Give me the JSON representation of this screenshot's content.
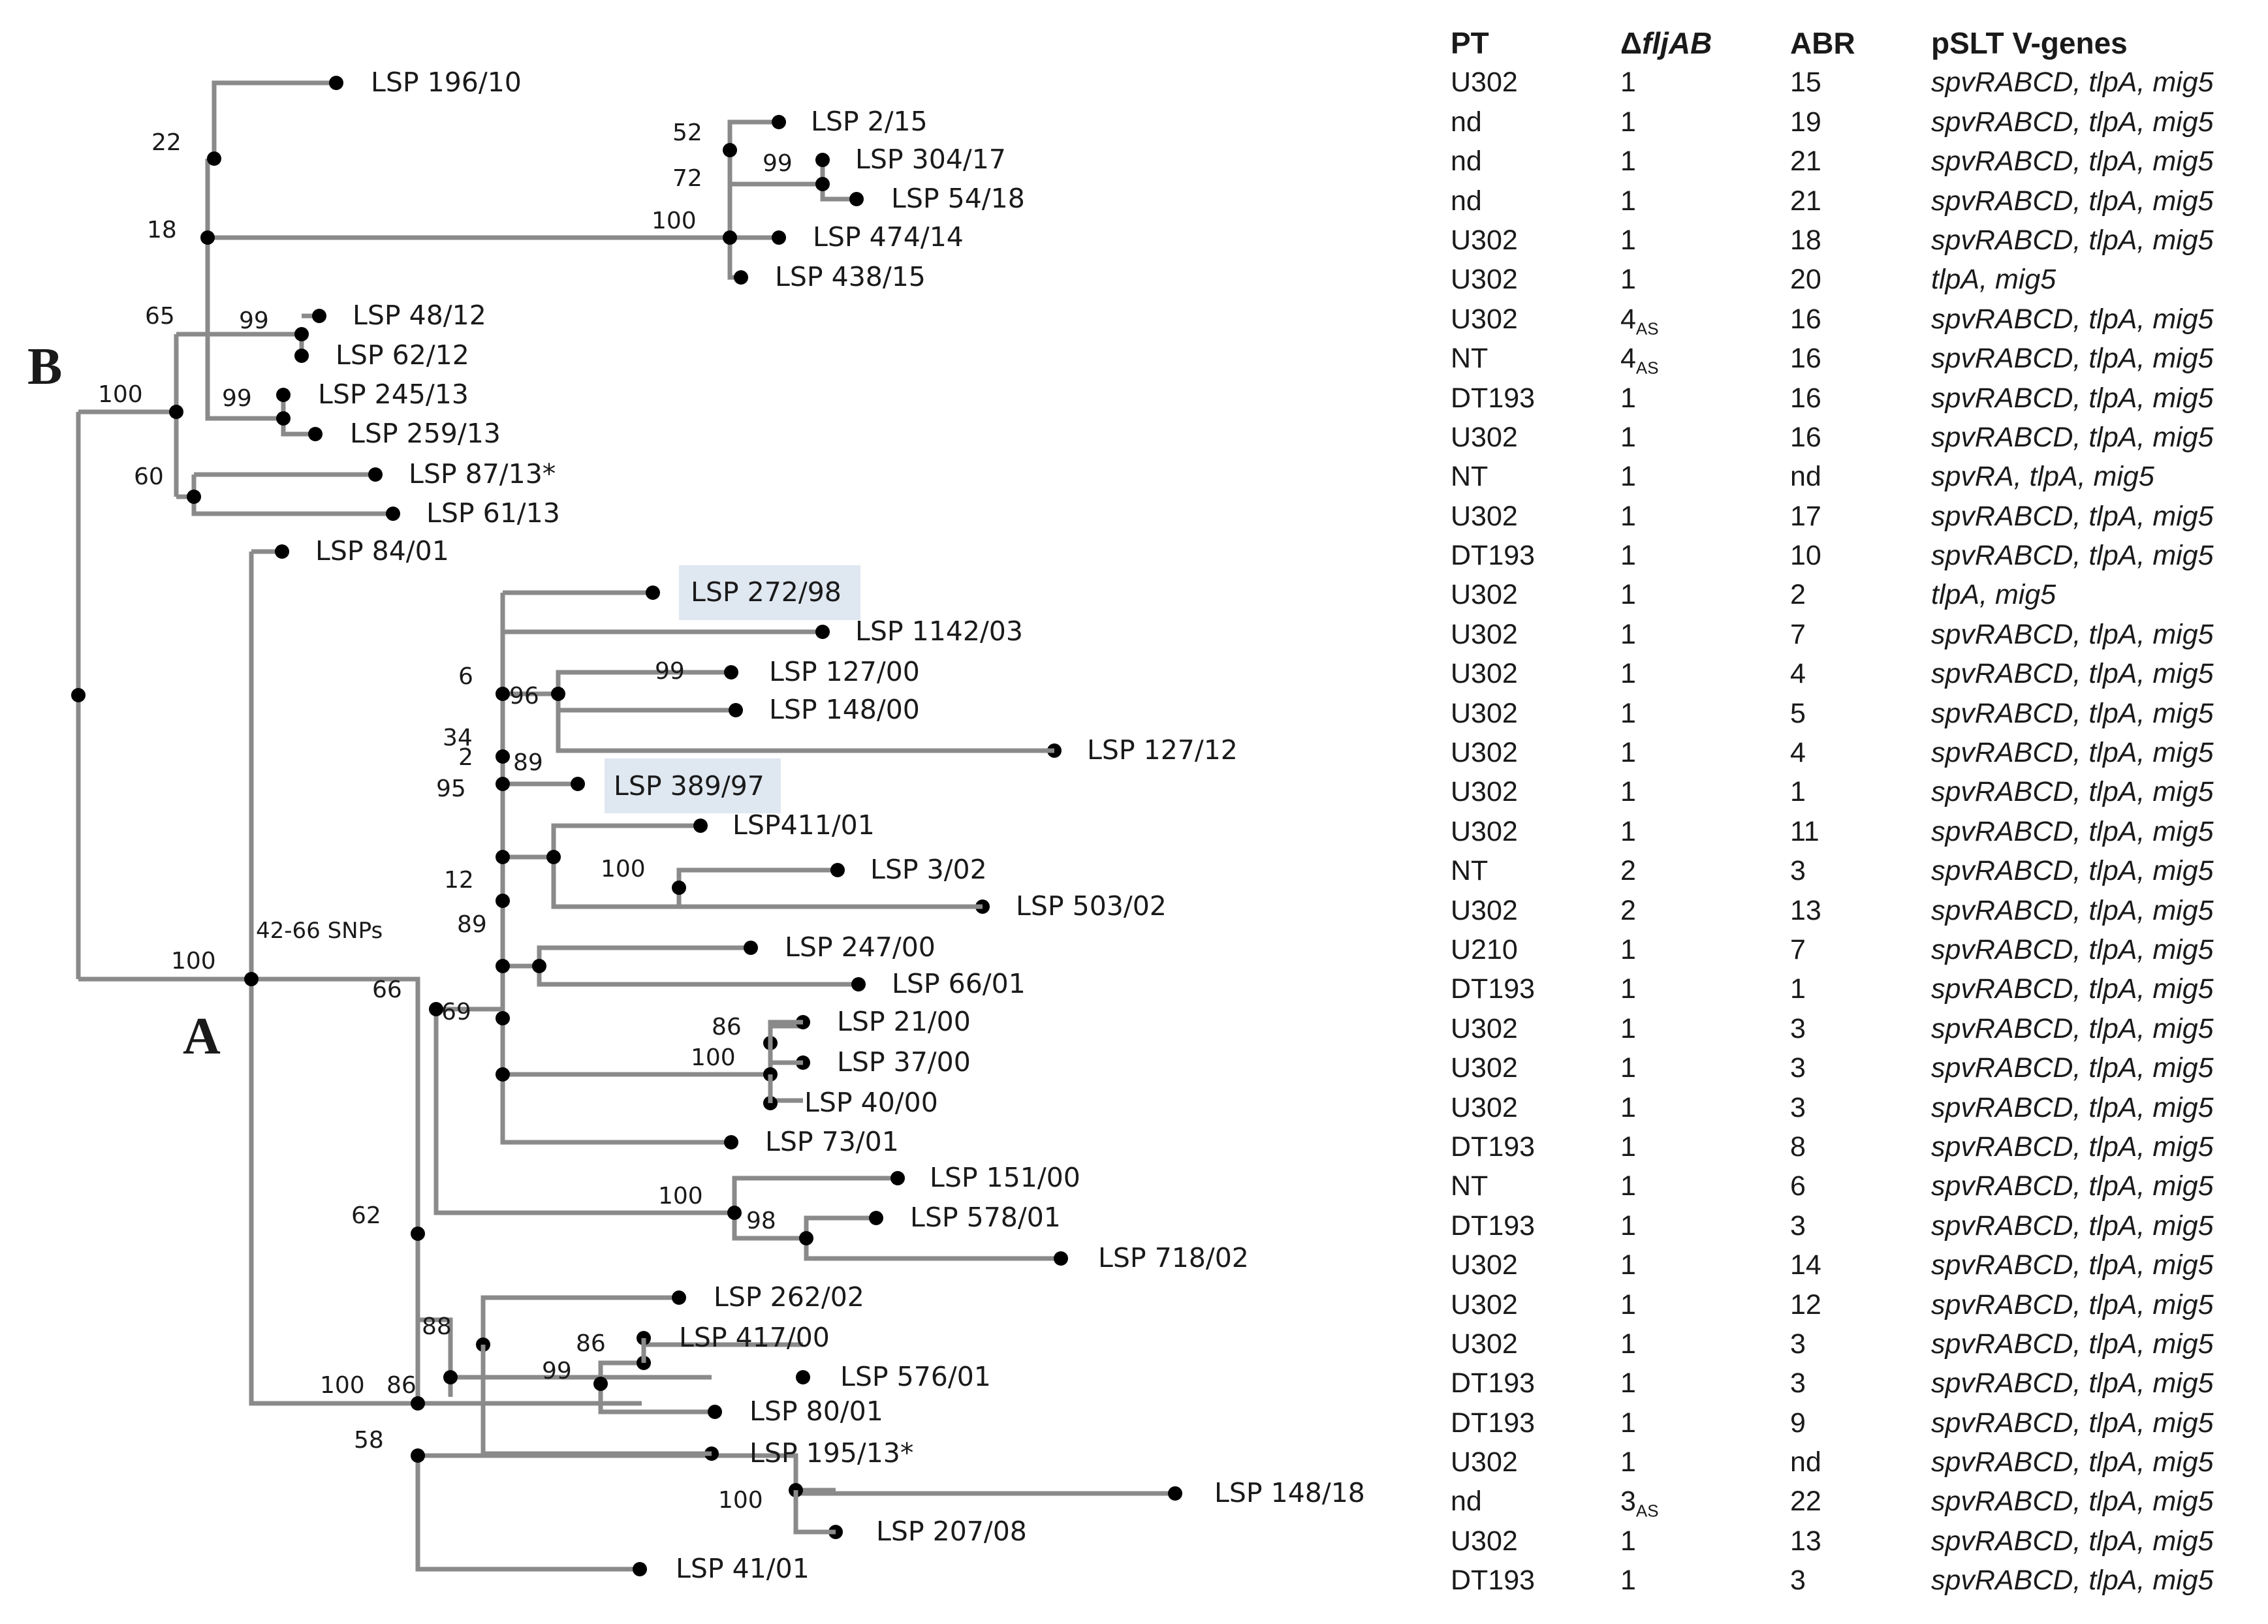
{
  "labels": {
    "clade_a": "A",
    "clade_b": "B",
    "snp_note": "42-66 SNPs"
  },
  "leaves": {
    "l01": "LSP 196/10",
    "l02": "LSP 2/15",
    "l03": "LSP 304/17",
    "l04": "LSP 54/18",
    "l05": "LSP 474/14",
    "l06": "LSP 438/15",
    "l07": "LSP 48/12",
    "l08": "LSP 62/12",
    "l09": "LSP 245/13",
    "l10": "LSP 259/13",
    "l11": "LSP 87/13*",
    "l12": "LSP 61/13",
    "l13": "LSP 84/01",
    "l14": "LSP 272/98",
    "l15": "LSP 1142/03",
    "l16": "LSP 127/00",
    "l17": "LSP 148/00",
    "l18": "LSP 127/12",
    "l19": "LSP 389/97",
    "l20": "LSP411/01",
    "l21": "LSP 3/02",
    "l22": "LSP 503/02",
    "l23": "LSP 247/00",
    "l24": "LSP 66/01",
    "l25": "LSP 21/00",
    "l26": "LSP 37/00",
    "l27": "LSP 40/00",
    "l28": "LSP 73/01",
    "l29": "LSP 151/00",
    "l30": "LSP 578/01",
    "l31": "LSP 718/02",
    "l32": "LSP 262/02",
    "l33": "LSP 417/00",
    "l34": "LSP 576/01",
    "l35": "LSP 80/01",
    "l36": "LSP 195/13*",
    "l37": "LSP 148/18",
    "l38": "LSP 207/08",
    "l39": "LSP 41/01"
  },
  "support": {
    "s01": "22",
    "s02": "18",
    "s03": "65",
    "s04": "100",
    "s05": "60",
    "s06": "99",
    "s07": "99",
    "s08": "52",
    "s09": "72",
    "s10": "99",
    "s11": "100",
    "s12": "6",
    "s13": "96",
    "s14": "34",
    "s15": "2",
    "s16": "89",
    "s17": "95",
    "s18": "99",
    "s19": "12",
    "s20": "89",
    "s21": "100",
    "s22": "100",
    "s23": "66",
    "s24": "69",
    "s25": "86",
    "s26": "100",
    "s27": "62",
    "s28": "100",
    "s29": "98",
    "s30": "88",
    "s31": "86",
    "s32": "99",
    "s33": "100",
    "s34": "86",
    "s35": "58",
    "s36": "100"
  },
  "table": {
    "headers": {
      "pt": "PT",
      "delta": "Δ",
      "delta_italic": "fljAB",
      "abr": "ABR",
      "genes": "pSLT V-genes"
    },
    "rows": [
      {
        "pt": "U302",
        "fl": "1",
        "fl_sub": "",
        "abr": "15",
        "genes": "spvRABCD, tlpA, mig5"
      },
      {
        "pt": "nd",
        "fl": "1",
        "fl_sub": "",
        "abr": "19",
        "genes": "spvRABCD, tlpA, mig5"
      },
      {
        "pt": "nd",
        "fl": "1",
        "fl_sub": "",
        "abr": "21",
        "genes": "spvRABCD, tlpA, mig5"
      },
      {
        "pt": "nd",
        "fl": "1",
        "fl_sub": "",
        "abr": "21",
        "genes": "spvRABCD, tlpA, mig5"
      },
      {
        "pt": "U302",
        "fl": "1",
        "fl_sub": "",
        "abr": "18",
        "genes": "spvRABCD, tlpA, mig5"
      },
      {
        "pt": "U302",
        "fl": "1",
        "fl_sub": "",
        "abr": "20",
        "genes": "tlpA, mig5"
      },
      {
        "pt": "U302",
        "fl": "4",
        "fl_sub": "AS",
        "abr": "16",
        "genes": "spvRABCD, tlpA, mig5"
      },
      {
        "pt": "NT",
        "fl": "4",
        "fl_sub": "AS",
        "abr": "16",
        "genes": "spvRABCD, tlpA, mig5"
      },
      {
        "pt": "DT193",
        "fl": "1",
        "fl_sub": "",
        "abr": "16",
        "genes": "spvRABCD, tlpA, mig5"
      },
      {
        "pt": "U302",
        "fl": "1",
        "fl_sub": "",
        "abr": "16",
        "genes": "spvRABCD, tlpA, mig5"
      },
      {
        "pt": "NT",
        "fl": "1",
        "fl_sub": "",
        "abr": "nd",
        "genes": "spvRA, tlpA, mig5"
      },
      {
        "pt": "U302",
        "fl": "1",
        "fl_sub": "",
        "abr": "17",
        "genes": "spvRABCD, tlpA, mig5"
      },
      {
        "pt": "DT193",
        "fl": "1",
        "fl_sub": "",
        "abr": "10",
        "genes": "spvRABCD, tlpA, mig5"
      },
      {
        "pt": "U302",
        "fl": "1",
        "fl_sub": "",
        "abr": "2",
        "genes": "tlpA, mig5"
      },
      {
        "pt": "U302",
        "fl": "1",
        "fl_sub": "",
        "abr": "7",
        "genes": "spvRABCD, tlpA, mig5"
      },
      {
        "pt": "U302",
        "fl": "1",
        "fl_sub": "",
        "abr": "4",
        "genes": "spvRABCD, tlpA, mig5"
      },
      {
        "pt": "U302",
        "fl": "1",
        "fl_sub": "",
        "abr": "5",
        "genes": "spvRABCD, tlpA, mig5"
      },
      {
        "pt": "U302",
        "fl": "1",
        "fl_sub": "",
        "abr": "4",
        "genes": "spvRABCD, tlpA, mig5"
      },
      {
        "pt": "U302",
        "fl": "1",
        "fl_sub": "",
        "abr": "1",
        "genes": "spvRABCD, tlpA, mig5"
      },
      {
        "pt": "U302",
        "fl": "1",
        "fl_sub": "",
        "abr": "11",
        "genes": "spvRABCD, tlpA, mig5"
      },
      {
        "pt": "NT",
        "fl": "2",
        "fl_sub": "",
        "abr": "3",
        "genes": "spvRABCD, tlpA, mig5"
      },
      {
        "pt": "U302",
        "fl": "2",
        "fl_sub": "",
        "abr": "13",
        "genes": "spvRABCD, tlpA, mig5"
      },
      {
        "pt": "U210",
        "fl": "1",
        "fl_sub": "",
        "abr": "7",
        "genes": "spvRABCD, tlpA, mig5"
      },
      {
        "pt": "DT193",
        "fl": "1",
        "fl_sub": "",
        "abr": "1",
        "genes": "spvRABCD, tlpA, mig5"
      },
      {
        "pt": "U302",
        "fl": "1",
        "fl_sub": "",
        "abr": "3",
        "genes": "spvRABCD, tlpA, mig5"
      },
      {
        "pt": "U302",
        "fl": "1",
        "fl_sub": "",
        "abr": "3",
        "genes": "spvRABCD, tlpA, mig5"
      },
      {
        "pt": "U302",
        "fl": "1",
        "fl_sub": "",
        "abr": "3",
        "genes": "spvRABCD, tlpA, mig5"
      },
      {
        "pt": "DT193",
        "fl": "1",
        "fl_sub": "",
        "abr": "8",
        "genes": "spvRABCD, tlpA, mig5"
      },
      {
        "pt": "NT",
        "fl": "1",
        "fl_sub": "",
        "abr": "6",
        "genes": "spvRABCD, tlpA, mig5"
      },
      {
        "pt": "DT193",
        "fl": "1",
        "fl_sub": "",
        "abr": "3",
        "genes": "spvRABCD, tlpA, mig5"
      },
      {
        "pt": "U302",
        "fl": "1",
        "fl_sub": "",
        "abr": "14",
        "genes": "spvRABCD, tlpA, mig5"
      },
      {
        "pt": "U302",
        "fl": "1",
        "fl_sub": "",
        "abr": "12",
        "genes": "spvRABCD, tlpA, mig5"
      },
      {
        "pt": "U302",
        "fl": "1",
        "fl_sub": "",
        "abr": "3",
        "genes": "spvRABCD, tlpA, mig5"
      },
      {
        "pt": "DT193",
        "fl": "1",
        "fl_sub": "",
        "abr": "3",
        "genes": "spvRABCD, tlpA, mig5"
      },
      {
        "pt": "DT193",
        "fl": "1",
        "fl_sub": "",
        "abr": "9",
        "genes": "spvRABCD, tlpA, mig5"
      },
      {
        "pt": "U302",
        "fl": "1",
        "fl_sub": "",
        "abr": "nd",
        "genes": "spvRABCD, tlpA, mig5"
      },
      {
        "pt": "nd",
        "fl": "3",
        "fl_sub": "AS",
        "abr": "22",
        "genes": "spvRABCD, tlpA, mig5"
      },
      {
        "pt": "U302",
        "fl": "1",
        "fl_sub": "",
        "abr": "13",
        "genes": "spvRABCD, tlpA, mig5"
      },
      {
        "pt": "DT193",
        "fl": "1",
        "fl_sub": "",
        "abr": "3",
        "genes": "spvRABCD, tlpA, mig5"
      }
    ]
  }
}
